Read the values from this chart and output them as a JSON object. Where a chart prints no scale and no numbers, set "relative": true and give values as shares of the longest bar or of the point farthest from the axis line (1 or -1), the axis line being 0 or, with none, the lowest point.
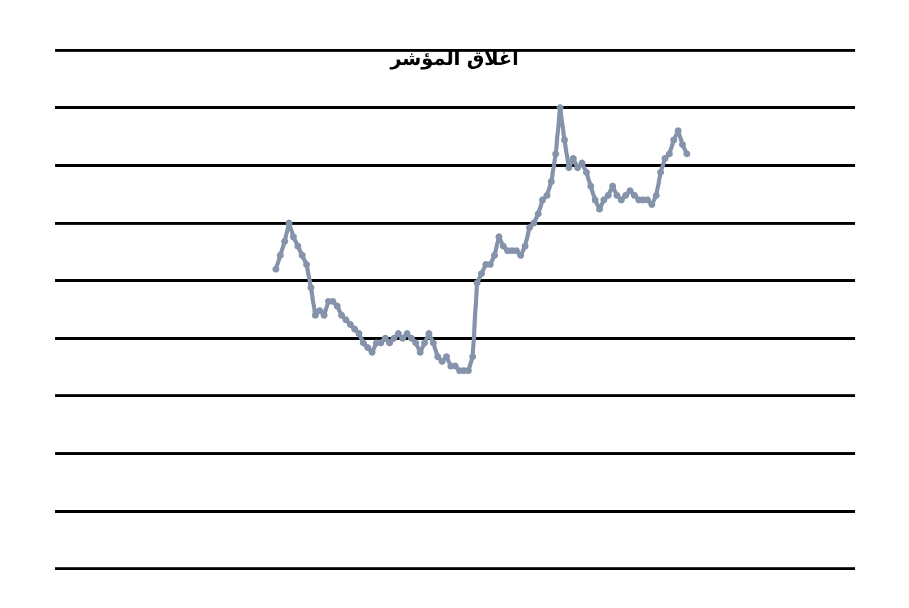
{
  "chart_data": {
    "type": "line",
    "title": "اغلاق المؤشر",
    "relative": true,
    "grid": "y",
    "marker": "circle",
    "line_style": "solid",
    "categories": [
      null,
      null,
      null,
      null,
      null,
      null,
      null,
      null,
      null,
      null,
      null,
      null,
      null,
      null,
      null,
      null,
      null,
      null,
      null,
      null,
      null,
      null,
      null,
      null,
      null,
      null,
      null,
      null,
      null,
      null,
      null,
      null,
      null,
      null,
      null,
      null,
      null,
      null,
      null,
      null,
      null,
      null,
      null,
      null,
      null,
      null,
      null,
      null,
      null,
      null,
      null,
      null,
      null,
      null,
      null,
      null,
      null,
      null,
      null,
      null,
      null,
      null,
      null,
      null,
      null,
      null,
      null,
      null,
      null,
      null,
      null,
      null,
      null,
      null,
      null,
      null,
      null,
      null,
      null,
      null,
      null,
      null,
      null,
      null,
      null,
      null,
      null,
      null,
      null,
      null,
      null,
      null,
      null,
      null,
      null,
      null,
      null,
      null,
      null,
      null,
      null,
      null,
      null,
      null,
      null,
      null,
      null,
      null,
      null,
      null,
      null,
      null,
      null,
      null,
      null,
      null,
      null,
      null,
      null,
      null,
      null,
      null,
      null,
      null,
      null,
      null,
      null,
      null,
      null,
      null,
      null,
      null,
      null,
      null,
      null,
      null,
      null,
      null,
      null,
      null,
      null,
      null,
      null,
      null,
      null,
      null,
      null,
      null,
      null,
      null,
      null,
      null,
      null,
      null,
      null,
      null,
      null,
      null,
      null,
      null,
      null,
      null,
      null,
      null,
      null,
      null,
      null,
      null,
      null,
      null,
      null,
      null,
      null,
      null,
      null,
      null,
      null,
      null,
      null,
      null,
      null,
      null,
      null
    ],
    "series": [
      {
        "color": "#8593ab",
        "values": [
          null,
          null,
          null,
          null,
          null,
          null,
          null,
          null,
          null,
          null,
          null,
          null,
          null,
          null,
          null,
          null,
          null,
          null,
          null,
          null,
          null,
          null,
          null,
          null,
          null,
          null,
          null,
          null,
          null,
          null,
          null,
          null,
          null,
          null,
          null,
          null,
          null,
          null,
          null,
          null,
          null,
          null,
          null,
          null,
          null,
          null,
          null,
          null,
          null,
          null,
          0.65,
          0.68,
          0.71,
          0.75,
          0.72,
          0.7,
          0.68,
          0.66,
          0.61,
          0.55,
          0.56,
          0.55,
          0.58,
          0.58,
          0.57,
          0.55,
          0.54,
          0.53,
          0.52,
          0.51,
          0.49,
          0.48,
          0.47,
          0.49,
          0.49,
          0.5,
          0.49,
          0.5,
          0.51,
          0.5,
          0.51,
          0.5,
          0.49,
          0.47,
          0.49,
          0.51,
          0.49,
          0.46,
          0.45,
          0.46,
          0.44,
          0.44,
          0.43,
          0.43,
          0.43,
          0.46,
          0.62,
          0.64,
          0.66,
          0.66,
          0.68,
          0.72,
          0.7,
          0.69,
          0.69,
          0.69,
          0.68,
          0.7,
          0.74,
          0.75,
          0.77,
          0.8,
          0.81,
          0.84,
          0.9,
          1.0,
          0.93,
          0.87,
          0.89,
          0.87,
          0.88,
          0.86,
          0.83,
          0.8,
          0.78,
          0.8,
          0.81,
          0.83,
          0.81,
          0.8,
          0.81,
          0.82,
          0.81,
          0.8,
          0.8,
          0.8,
          0.79,
          0.81,
          0.86,
          0.89,
          0.9,
          0.93,
          0.95,
          0.92,
          0.9,
          null,
          null,
          null,
          null,
          null,
          null,
          null,
          null,
          null,
          null,
          null,
          null,
          null,
          null,
          null,
          null,
          null,
          null,
          null,
          null,
          null,
          null,
          null,
          null,
          null,
          null,
          null,
          null,
          null,
          null,
          null,
          null,
          null,
          null,
          null,
          null,
          null,
          null
        ]
      }
    ]
  }
}
